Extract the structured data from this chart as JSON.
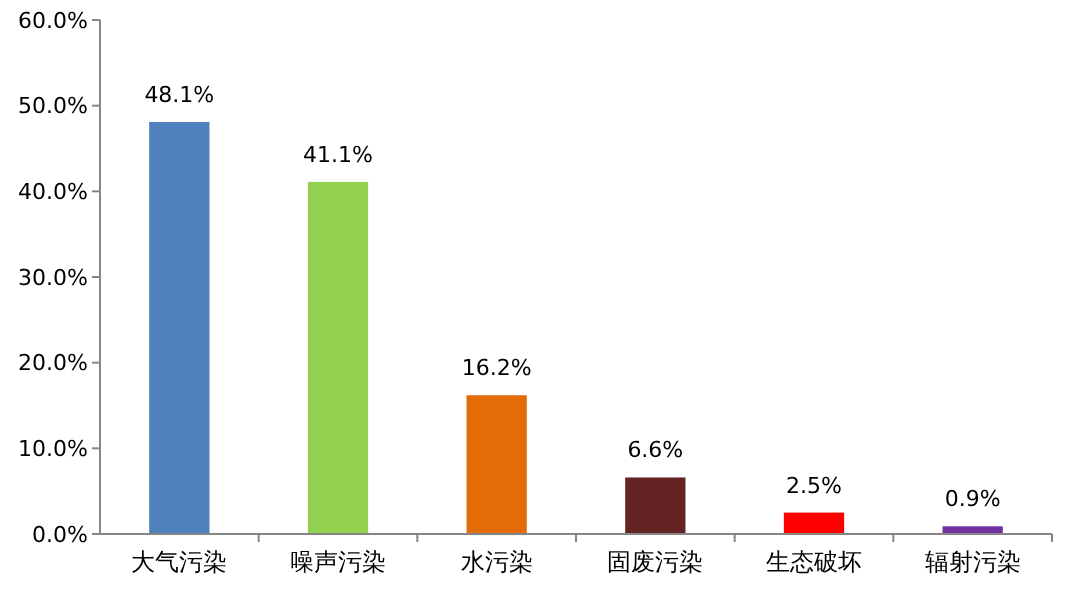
{
  "chart_data": {
    "type": "bar",
    "categories": [
      "大气污染",
      "噪声污染",
      "水污染",
      "固废污染",
      "生态破坏",
      "辐射污染"
    ],
    "values": [
      48.1,
      41.1,
      16.2,
      6.6,
      2.5,
      0.9
    ],
    "colors": [
      "#4f81bd",
      "#92d050",
      "#e36c09",
      "#632423",
      "#ff0000",
      "#7030a0"
    ],
    "value_labels": [
      "48.1%",
      "41.1%",
      "16.2%",
      "6.6%",
      "2.5%",
      "0.9%"
    ],
    "ylim": [
      0,
      60
    ],
    "yticks": [
      {
        "value": 0,
        "label": "0.0%"
      },
      {
        "value": 10,
        "label": "10.0%"
      },
      {
        "value": 20,
        "label": "20.0%"
      },
      {
        "value": 30,
        "label": "30.0%"
      },
      {
        "value": 40,
        "label": "40.0%"
      },
      {
        "value": 50,
        "label": "50.0%"
      },
      {
        "value": 60,
        "label": "60.0%"
      }
    ],
    "grid": false
  }
}
